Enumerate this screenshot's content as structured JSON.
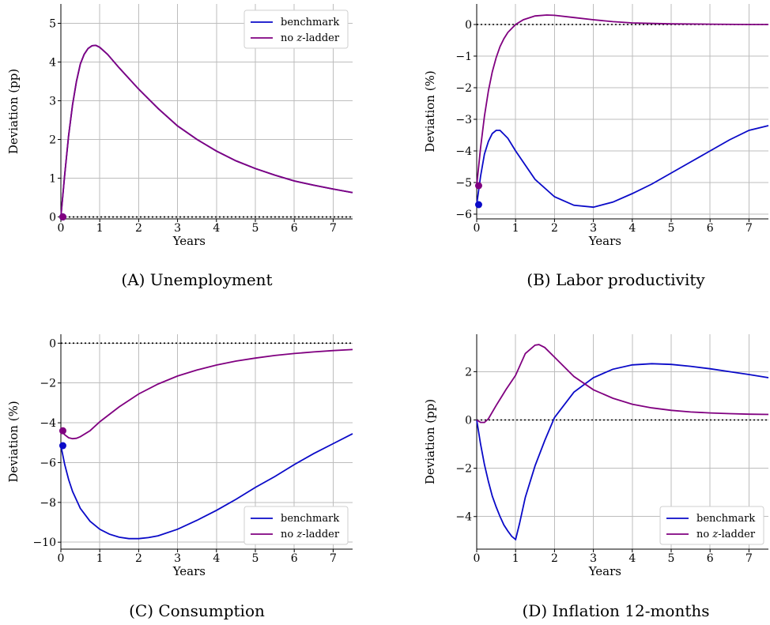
{
  "chart_data": [
    {
      "type": "line",
      "panel_caption": "(A) Unemployment",
      "xlabel": "Years",
      "ylabel": "Deviation (pp)",
      "xlim": [
        0,
        7.5
      ],
      "ylim": [
        -0.05,
        5.5
      ],
      "xticks": [
        0,
        1,
        2,
        3,
        4,
        5,
        6,
        7
      ],
      "yticks": [
        0,
        1,
        2,
        3,
        4,
        5
      ],
      "grid": true,
      "legend_position": "top-right",
      "zero_line": true,
      "start_dots": [
        {
          "series": "benchmark",
          "x": 0.05,
          "y": 0.0
        },
        {
          "series": "no z-ladder",
          "x": 0.05,
          "y": 0.0
        }
      ],
      "series": [
        {
          "name": "benchmark",
          "color": "#0a0ac8",
          "x": [
            0,
            0.1,
            0.2,
            0.3,
            0.4,
            0.5,
            0.6,
            0.7,
            0.8,
            0.9,
            1.0,
            1.2,
            1.5,
            2.0,
            2.5,
            3.0,
            3.5,
            4.0,
            4.5,
            5.0,
            5.5,
            6.0,
            6.5,
            7.0,
            7.5
          ],
          "y": [
            0,
            1.1,
            2.1,
            2.9,
            3.5,
            3.95,
            4.2,
            4.35,
            4.42,
            4.43,
            4.38,
            4.2,
            3.85,
            3.3,
            2.8,
            2.35,
            2.0,
            1.7,
            1.45,
            1.25,
            1.08,
            0.93,
            0.82,
            0.72,
            0.63
          ]
        },
        {
          "name": "no z-ladder",
          "color": "#800080",
          "x": [
            0,
            0.1,
            0.2,
            0.3,
            0.4,
            0.5,
            0.6,
            0.7,
            0.8,
            0.9,
            1.0,
            1.2,
            1.5,
            2.0,
            2.5,
            3.0,
            3.5,
            4.0,
            4.5,
            5.0,
            5.5,
            6.0,
            6.5,
            7.0,
            7.5
          ],
          "y": [
            0,
            1.1,
            2.1,
            2.9,
            3.5,
            3.95,
            4.2,
            4.35,
            4.42,
            4.43,
            4.38,
            4.2,
            3.85,
            3.3,
            2.8,
            2.35,
            2.0,
            1.7,
            1.45,
            1.25,
            1.08,
            0.93,
            0.82,
            0.72,
            0.63
          ]
        }
      ]
    },
    {
      "type": "line",
      "panel_caption": "(B) Labor productivity",
      "xlabel": "Years",
      "ylabel": "Deviation (%)",
      "xlim": [
        0,
        7.5
      ],
      "ylim": [
        -6.15,
        0.65
      ],
      "xticks": [
        0,
        1,
        2,
        3,
        4,
        5,
        6,
        7
      ],
      "yticks": [
        0,
        -1,
        -2,
        -3,
        -4,
        -5,
        -6
      ],
      "grid": true,
      "legend_position": "none",
      "zero_line": true,
      "start_dots": [
        {
          "series": "benchmark",
          "x": 0.05,
          "y": -5.7
        },
        {
          "series": "no z-ladder",
          "x": 0.05,
          "y": -5.1
        }
      ],
      "series": [
        {
          "name": "benchmark",
          "color": "#0a0ac8",
          "x": [
            0,
            0.1,
            0.2,
            0.3,
            0.4,
            0.5,
            0.6,
            0.8,
            1.0,
            1.5,
            2.0,
            2.5,
            3.0,
            3.5,
            4.0,
            4.5,
            5.0,
            5.5,
            6.0,
            6.5,
            7.0,
            7.5
          ],
          "y": [
            -5.7,
            -4.8,
            -4.1,
            -3.7,
            -3.45,
            -3.35,
            -3.35,
            -3.6,
            -4.0,
            -4.9,
            -5.45,
            -5.72,
            -5.78,
            -5.62,
            -5.35,
            -5.05,
            -4.7,
            -4.35,
            -4.0,
            -3.65,
            -3.35,
            -3.2
          ]
        },
        {
          "name": "no z-ladder",
          "color": "#800080",
          "x": [
            0,
            0.1,
            0.2,
            0.3,
            0.4,
            0.5,
            0.6,
            0.7,
            0.8,
            1.0,
            1.2,
            1.5,
            1.8,
            2.0,
            2.5,
            3.0,
            3.5,
            4.0,
            5.0,
            6.0,
            7.0,
            7.5
          ],
          "y": [
            -5.1,
            -3.9,
            -2.9,
            -2.1,
            -1.5,
            -1.05,
            -0.7,
            -0.45,
            -0.25,
            0.0,
            0.15,
            0.27,
            0.3,
            0.29,
            0.22,
            0.15,
            0.09,
            0.05,
            0.02,
            0.01,
            0.0,
            0.0
          ]
        }
      ]
    },
    {
      "type": "line",
      "panel_caption": "(C) Consumption",
      "xlabel": "Years",
      "ylabel": "Deviation (%)",
      "xlim": [
        0,
        7.5
      ],
      "ylim": [
        -10.35,
        0.45
      ],
      "xticks": [
        0,
        1,
        2,
        3,
        4,
        5,
        6,
        7
      ],
      "yticks": [
        0,
        -2,
        -4,
        -6,
        -8,
        -10
      ],
      "grid": true,
      "legend_position": "bottom-right",
      "zero_line": true,
      "start_dots": [
        {
          "series": "benchmark",
          "x": 0.05,
          "y": -5.15
        },
        {
          "series": "no z-ladder",
          "x": 0.05,
          "y": -4.4
        }
      ],
      "series": [
        {
          "name": "benchmark",
          "color": "#0a0ac8",
          "x": [
            0,
            0.1,
            0.2,
            0.3,
            0.5,
            0.75,
            1.0,
            1.25,
            1.5,
            1.75,
            2.0,
            2.25,
            2.5,
            3.0,
            3.5,
            4.0,
            4.5,
            5.0,
            5.5,
            6.0,
            6.5,
            7.0,
            7.5
          ],
          "y": [
            -5.15,
            -6.1,
            -6.85,
            -7.45,
            -8.3,
            -8.95,
            -9.35,
            -9.6,
            -9.75,
            -9.82,
            -9.82,
            -9.77,
            -9.68,
            -9.35,
            -8.9,
            -8.4,
            -7.85,
            -7.25,
            -6.7,
            -6.1,
            -5.55,
            -5.05,
            -4.55
          ]
        },
        {
          "name": "no z-ladder",
          "color": "#800080",
          "x": [
            0,
            0.1,
            0.2,
            0.3,
            0.4,
            0.5,
            0.75,
            1.0,
            1.5,
            2.0,
            2.5,
            3.0,
            3.5,
            4.0,
            4.5,
            5.0,
            5.5,
            6.0,
            6.5,
            7.0,
            7.5
          ],
          "y": [
            -4.4,
            -4.6,
            -4.75,
            -4.8,
            -4.78,
            -4.7,
            -4.4,
            -3.95,
            -3.2,
            -2.55,
            -2.05,
            -1.65,
            -1.35,
            -1.1,
            -0.9,
            -0.75,
            -0.62,
            -0.52,
            -0.44,
            -0.37,
            -0.32
          ]
        }
      ]
    },
    {
      "type": "line",
      "panel_caption": "(D) Inflation 12-months",
      "xlabel": "Years",
      "ylabel": "Deviation (pp)",
      "xlim": [
        0,
        7.5
      ],
      "ylim": [
        -5.35,
        3.55
      ],
      "xticks": [
        0,
        1,
        2,
        3,
        4,
        5,
        6,
        7
      ],
      "yticks": [
        2,
        0,
        -2,
        -4
      ],
      "grid": true,
      "legend_position": "bottom-right",
      "zero_line": true,
      "start_dots": [],
      "series": [
        {
          "name": "benchmark",
          "color": "#0a0ac8",
          "x": [
            0,
            0.1,
            0.2,
            0.3,
            0.4,
            0.5,
            0.6,
            0.7,
            0.8,
            0.9,
            1.0,
            1.1,
            1.25,
            1.5,
            1.75,
            2.0,
            2.5,
            3.0,
            3.5,
            4.0,
            4.5,
            5.0,
            5.5,
            6.0,
            6.5,
            7.0,
            7.5
          ],
          "y": [
            0,
            -1.0,
            -1.85,
            -2.55,
            -3.15,
            -3.6,
            -4.0,
            -4.35,
            -4.6,
            -4.82,
            -4.95,
            -4.3,
            -3.2,
            -1.9,
            -0.85,
            0.1,
            1.15,
            1.75,
            2.1,
            2.28,
            2.33,
            2.3,
            2.22,
            2.12,
            2.0,
            1.88,
            1.75
          ]
        },
        {
          "name": "no z-ladder",
          "color": "#800080",
          "x": [
            0,
            0.1,
            0.2,
            0.3,
            0.5,
            0.75,
            1.0,
            1.25,
            1.5,
            1.6,
            1.75,
            2.0,
            2.5,
            3.0,
            3.5,
            4.0,
            4.5,
            5.0,
            5.5,
            6.0,
            6.5,
            7.0,
            7.5
          ],
          "y": [
            0,
            -0.1,
            -0.1,
            0.05,
            0.6,
            1.25,
            1.85,
            2.75,
            3.1,
            3.12,
            3.0,
            2.6,
            1.8,
            1.25,
            0.9,
            0.65,
            0.5,
            0.4,
            0.33,
            0.29,
            0.26,
            0.24,
            0.23
          ]
        }
      ]
    }
  ]
}
